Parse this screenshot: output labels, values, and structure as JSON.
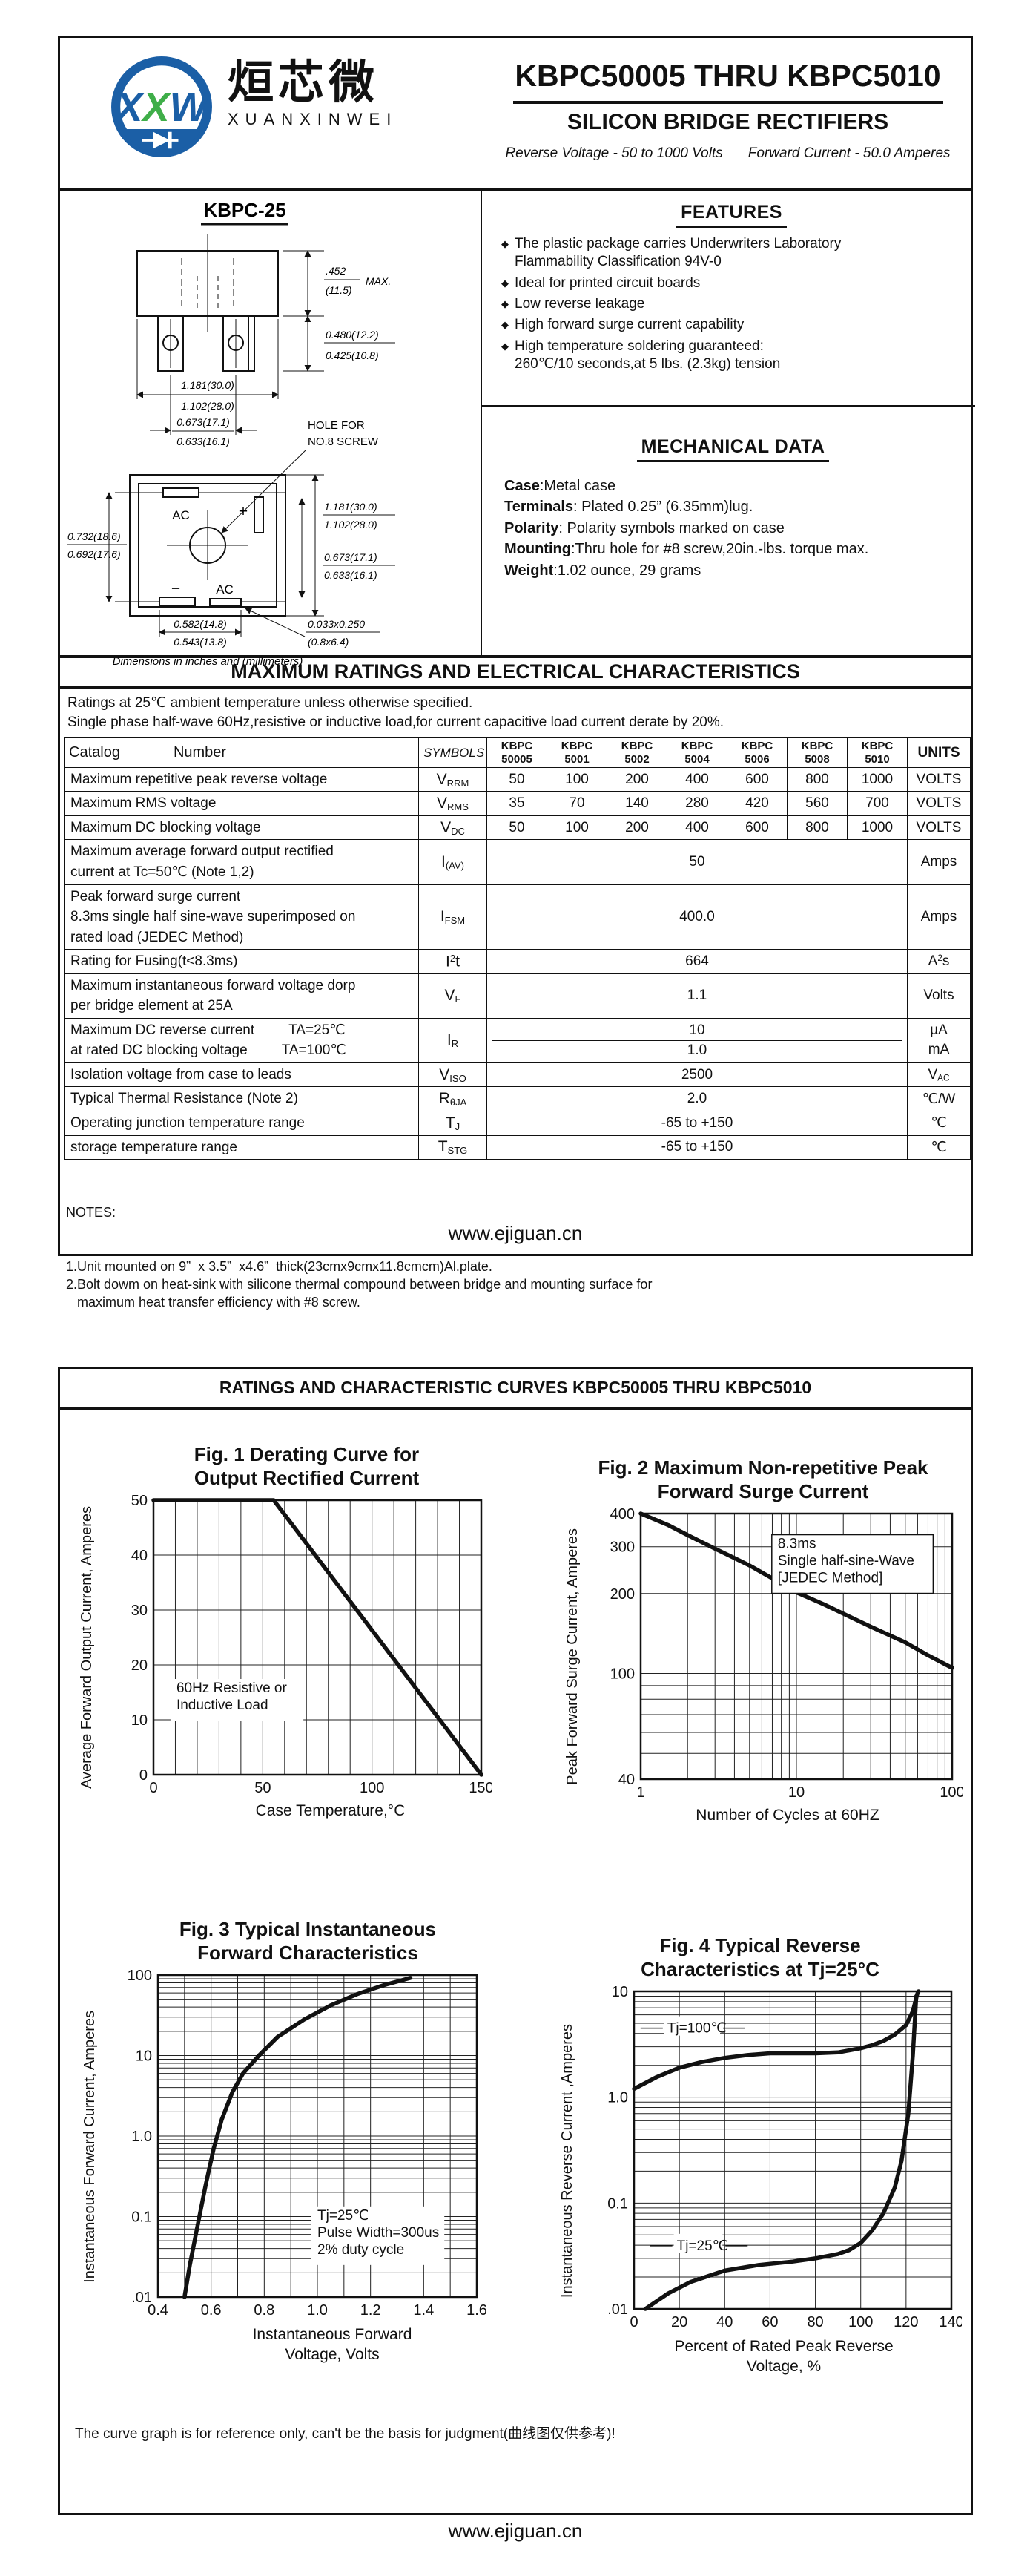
{
  "logo": {
    "monogram": [
      {
        "t": "X",
        "c": "#1b5fa6"
      },
      {
        "t": "X",
        "c": "#3fae49"
      },
      {
        "t": "W",
        "c": "#1b5fa6"
      }
    ],
    "chinese": "烜芯微",
    "latin": "XUANXINWEI",
    "blue": "#1b5fa6",
    "green": "#3fae49"
  },
  "header": {
    "title": "KBPC50005 THRU KBPC5010",
    "subtitle": "SILICON BRIDGE RECTIFIERS",
    "tagline_left": "Reverse Voltage - 50 to 1000 Volts",
    "tagline_right": "Forward Current - 50.0 Amperes"
  },
  "package": {
    "name": "KBPC-25",
    "caption": "Dimensions in inches and (millimeters)",
    "labels": {
      "height_top": ".452",
      "height_top_mm": "(11.5)",
      "height_max": "MAX.",
      "lug_h1": "0.480(12.2)",
      "lug_h2": "0.425(10.8)",
      "width1": "1.181(30.0)",
      "width2": "1.102(28.0)",
      "span1": "0.673(17.1)",
      "span2": "0.633(16.1)",
      "hole1": "HOLE FOR",
      "hole2": "NO.8 SCREW",
      "side1": "0.732(18.6)",
      "side2": "0.692(17.6)",
      "tall1": "1.181(30.0)",
      "tall2": "1.102(28.0)",
      "short1": "0.673(17.1)",
      "short2": "0.633(16.1)",
      "bottom1": "0.582(14.8)",
      "bottom2": "0.543(13.8)",
      "slot1": "0.033x0.250",
      "slot2": "(0.8x6.4)",
      "ac_top": "AC",
      "ac_bottom": "AC",
      "plus": "+",
      "minus": "−"
    }
  },
  "features": {
    "heading": "FEATURES",
    "bullet_glyph": "◆",
    "items": [
      {
        "lines": [
          "The plastic package carries Underwriters Laboratory",
          "Flammability Classification 94V-0"
        ]
      },
      {
        "lines": [
          "Ideal for printed circuit boards"
        ]
      },
      {
        "lines": [
          "Low reverse leakage"
        ]
      },
      {
        "lines": [
          "High forward surge current capability"
        ]
      },
      {
        "lines": [
          "High temperature soldering guaranteed:",
          "260℃/10 seconds,at 5 lbs. (2.3kg) tension"
        ]
      }
    ]
  },
  "mechanical": {
    "heading": "MECHANICAL DATA",
    "items": [
      {
        "b": "Case",
        "t": ":Metal case"
      },
      {
        "b": "Terminals",
        "t": ": Plated 0.25”  (6.35mm)lug."
      },
      {
        "b": "Polarity",
        "t": ": Polarity symbols marked on case"
      },
      {
        "b": "Mounting",
        "t": ":Thru hole for #8 screw,20in.-lbs. torque max."
      },
      {
        "b": "Weight",
        "t": ":1.02 ounce, 29 grams"
      }
    ]
  },
  "ratings": {
    "heading": "MAXIMUM RATINGS AND ELECTRICAL CHARACTERISTICS",
    "note1": "Ratings at 25℃ ambient temperature unless otherwise specified.",
    "note2": "Single phase half-wave 60Hz,resistive or inductive load,for current capacitive load current derate by 20%.",
    "table": {
      "catalog": "Catalog",
      "number": "Number",
      "symbols_header": "SYMBOLS",
      "units_header": "UNITS",
      "part_cols": [
        [
          "KBPC",
          "50005"
        ],
        [
          "KBPC",
          "5001"
        ],
        [
          "KBPC",
          "5002"
        ],
        [
          "KBPC",
          "5004"
        ],
        [
          "KBPC",
          "5006"
        ],
        [
          "KBPC",
          "5008"
        ],
        [
          "KBPC",
          "5010"
        ]
      ],
      "rows": [
        {
          "label": [
            [
              "Maximum repetitive peak reverse voltage"
            ]
          ],
          "sym": [
            {
              "t": "V"
            },
            {
              "t": "RRM",
              "s": "sub"
            }
          ],
          "values": [
            "50",
            "100",
            "200",
            "400",
            "600",
            "800",
            "1000"
          ],
          "unit": [
            {
              "t": "VOLTS"
            }
          ]
        },
        {
          "label": [
            [
              "Maximum RMS voltage"
            ]
          ],
          "sym": [
            {
              "t": "V"
            },
            {
              "t": "RMS",
              "s": "sub"
            }
          ],
          "values": [
            "35",
            "70",
            "140",
            "280",
            "420",
            "560",
            "700"
          ],
          "unit": [
            {
              "t": "VOLTS"
            }
          ]
        },
        {
          "label": [
            [
              "Maximum DC blocking voltage"
            ]
          ],
          "sym": [
            {
              "t": "V"
            },
            {
              "t": "DC",
              "s": "sub"
            }
          ],
          "values": [
            "50",
            "100",
            "200",
            "400",
            "600",
            "800",
            "1000"
          ],
          "unit": [
            {
              "t": "VOLTS"
            }
          ]
        },
        {
          "label": [
            [
              "Maximum average forward output rectified"
            ],
            [
              "current at  Tc=50℃  (Note 1,2)"
            ]
          ],
          "sym": [
            {
              "t": "I"
            },
            {
              "t": "(AV)",
              "s": "sub"
            }
          ],
          "span": "50",
          "unit": [
            {
              "t": "Amps"
            }
          ]
        },
        {
          "label": [
            [
              "Peak forward surge current"
            ],
            [
              "8.3ms single half sine-wave superimposed on"
            ],
            [
              "rated load (JEDEC Method)"
            ]
          ],
          "sym": [
            {
              "t": "I"
            },
            {
              "t": "FSM",
              "s": "sub"
            }
          ],
          "span": "400.0",
          "unit": [
            {
              "t": "Amps"
            }
          ]
        },
        {
          "label": [
            [
              "Rating for Fusing(t<8.3ms)"
            ]
          ],
          "sym": [
            {
              "t": "I"
            },
            {
              "t": "2",
              "s": "sup"
            },
            {
              "t": "t"
            }
          ],
          "span": "664",
          "unit": [
            {
              "t": "A"
            },
            {
              "t": "2",
              "s": "sup"
            },
            {
              "t": "s"
            }
          ]
        },
        {
          "label": [
            [
              "Maximum instantaneous forward voltage dorp"
            ],
            [
              "per bridge element at 25A"
            ]
          ],
          "sym": [
            {
              "t": "V"
            },
            {
              "t": "F",
              "s": "sub"
            }
          ],
          "span": "1.1",
          "unit": [
            {
              "t": "Volts"
            }
          ]
        },
        {
          "label": [
            [
              "Maximum DC reverse current",
              "TA=25℃"
            ],
            [
              "at rated DC blocking voltage",
              "TA=100℃"
            ]
          ],
          "sym": [
            {
              "t": "I"
            },
            {
              "t": "R",
              "s": "sub"
            }
          ],
          "dual_values": [
            "10",
            "1.0"
          ],
          "dual_units": [
            [
              {
                "t": "µA"
              }
            ],
            [
              {
                "t": "mA"
              }
            ]
          ]
        },
        {
          "label": [
            [
              "Isolation voltage from case to leads"
            ]
          ],
          "sym": [
            {
              "t": "V"
            },
            {
              "t": "ISO",
              "s": "sub"
            }
          ],
          "span": "2500",
          "unit": [
            {
              "t": "V"
            },
            {
              "t": "AC",
              "s": "sub"
            }
          ]
        },
        {
          "label": [
            [
              "Typical Thermal Resistance (Note 2)"
            ]
          ],
          "sym": [
            {
              "t": "R"
            },
            {
              "t": "θJA",
              "s": "sub"
            }
          ],
          "span": "2.0",
          "unit": [
            {
              "t": "℃/W"
            }
          ]
        },
        {
          "label": [
            [
              "Operating junction temperature range"
            ]
          ],
          "sym": [
            {
              "t": "T"
            },
            {
              "t": "J",
              "s": "sub"
            }
          ],
          "span": "-65 to +150",
          "unit": [
            {
              "t": "℃"
            }
          ]
        },
        {
          "label": [
            [
              "storage temperature range"
            ]
          ],
          "sym": [
            {
              "t": "T"
            },
            {
              "t": "STG",
              "s": "sub"
            }
          ],
          "span": "-65 to +150",
          "unit": [
            {
              "t": "℃"
            }
          ]
        }
      ]
    },
    "notes_title": "NOTES:",
    "notes": [
      "1.Unit mounted on 9”  x 3.5”  x4.6”  thick(23cmx9cmx11.8cmcm)Al.plate.",
      "2.Bolt dowm on heat-sink with silicone thermal compound between bridge and mounting surface for",
      "   maximum heat transfer efficiency with #8 screw."
    ]
  },
  "page1_url": "www.ejiguan.cn",
  "page2": {
    "banner": "RATINGS AND CHARACTERISTIC CURVES KBPC50005 THRU KBPC5010",
    "disclaimer": "The curve graph is for reference only, can't be the basis for judgment(曲线图仅供参考)!",
    "url": "www.ejiguan.cn"
  },
  "chart_data": [
    {
      "id": "fig1",
      "type": "line",
      "title": [
        "Fig. 1 Derating Curve for",
        "Output Rectified Current"
      ],
      "xlabel": [
        "Case Temperature,°C"
      ],
      "ylabel": [
        "Average Forward Output",
        "Current, Amperes"
      ],
      "x_scale": "linear",
      "xlim": [
        0,
        150
      ],
      "x_grid_step": 10,
      "xticks": [
        {
          "v": 0,
          "l": "0"
        },
        {
          "v": 50,
          "l": "50"
        },
        {
          "v": 100,
          "l": "100"
        },
        {
          "v": 150,
          "l": "150"
        }
      ],
      "y_scale": "linear",
      "ylim": [
        0,
        50
      ],
      "y_grid_step": 10,
      "yticks": [
        {
          "v": 0,
          "l": "0"
        },
        {
          "v": 10,
          "l": "10"
        },
        {
          "v": 20,
          "l": "20"
        },
        {
          "v": 30,
          "l": "30"
        },
        {
          "v": 40,
          "l": "40"
        },
        {
          "v": 50,
          "l": "50"
        }
      ],
      "annotation": {
        "lines": [
          "60Hz Resistive or",
          "Inductive Load"
        ],
        "fx": 0.07,
        "fy": 0.7,
        "box": false
      },
      "series": [
        {
          "name": "derating-curve",
          "x": [
            0,
            55,
            150
          ],
          "y": [
            50,
            50,
            0
          ]
        }
      ]
    },
    {
      "id": "fig2",
      "type": "line",
      "title": [
        "Fig. 2 Maximum Non-repetitive Peak",
        "Forward Surge Current"
      ],
      "xlabel": [
        "Number of Cycles at 60HZ"
      ],
      "ylabel": [
        "Peak Forward Surge Current,",
        "Amperes"
      ],
      "x_scale": "log",
      "xlim": [
        1,
        100
      ],
      "xticks": [
        {
          "v": 1,
          "l": "1"
        },
        {
          "v": 10,
          "l": "10"
        },
        {
          "v": 100,
          "l": "100"
        }
      ],
      "y_scale": "log",
      "ylim": [
        40,
        400
      ],
      "yticks": [
        {
          "v": 40,
          "l": "40"
        },
        {
          "v": 100,
          "l": "100"
        },
        {
          "v": 200,
          "l": "200"
        },
        {
          "v": 300,
          "l": "300"
        },
        {
          "v": 400,
          "l": "400"
        }
      ],
      "annotation": {
        "lines": [
          "8.3ms",
          "Single half-sine-Wave",
          "[JEDEC Method]"
        ],
        "fx": 0.44,
        "fy": 0.13,
        "box": true
      },
      "series": [
        {
          "name": "surge-curve",
          "x": [
            1,
            1.5,
            2,
            3,
            4,
            5,
            7,
            10,
            15,
            20,
            30,
            50,
            70,
            100
          ],
          "y": [
            400,
            362,
            332,
            295,
            272,
            255,
            228,
            202,
            182,
            168,
            150,
            131,
            117,
            105
          ]
        }
      ]
    },
    {
      "id": "fig3",
      "type": "line",
      "title": [
        "Fig. 3 Typical Instantaneous",
        "Forward Characteristics"
      ],
      "xlabel": [
        "Instantaneous Forward",
        "Voltage, Volts"
      ],
      "ylabel": [
        "Instantaneous Forward Current,",
        "Amperes"
      ],
      "x_scale": "linear",
      "xlim": [
        0.4,
        1.6
      ],
      "x_grid_step": 0.1,
      "xticks": [
        {
          "v": 0.4,
          "l": "0.4"
        },
        {
          "v": 0.6,
          "l": "0.6"
        },
        {
          "v": 0.8,
          "l": "0.8"
        },
        {
          "v": 1.0,
          "l": "1.0"
        },
        {
          "v": 1.2,
          "l": "1.2"
        },
        {
          "v": 1.4,
          "l": "1.4"
        },
        {
          "v": 1.6,
          "l": "1.6"
        }
      ],
      "y_scale": "log",
      "ylim": [
        0.01,
        100
      ],
      "yticks": [
        {
          "v": 0.01,
          "l": ".01"
        },
        {
          "v": 0.1,
          "l": "0.1"
        },
        {
          "v": 1,
          "l": "1.0"
        },
        {
          "v": 10,
          "l": "10"
        },
        {
          "v": 100,
          "l": "100"
        }
      ],
      "annotation": {
        "lines": [
          "Tj=25℃",
          "Pulse Width=300us",
          "2% duty cycle"
        ],
        "fx": 0.5,
        "fy": 0.76,
        "box": false
      },
      "series": [
        {
          "name": "forward-curve",
          "x": [
            0.5,
            0.52,
            0.55,
            0.58,
            0.61,
            0.64,
            0.68,
            0.72,
            0.78,
            0.85,
            0.95,
            1.05,
            1.15,
            1.25,
            1.35
          ],
          "y": [
            0.01,
            0.025,
            0.08,
            0.25,
            0.7,
            1.6,
            3.5,
            6,
            10,
            17,
            28,
            42,
            58,
            75,
            92
          ]
        }
      ]
    },
    {
      "id": "fig4",
      "type": "line",
      "title": [
        "Fig. 4 Typical Reverse",
        "Characteristics at Tj=25°C"
      ],
      "xlabel": [
        "Percent of Rated Peak Reverse",
        "Voltage, %"
      ],
      "ylabel": [
        "Instantaneous Reverse",
        "Current ,Amperes"
      ],
      "x_scale": "linear",
      "xlim": [
        0,
        140
      ],
      "x_grid_step": 20,
      "xticks": [
        {
          "v": 0,
          "l": "0"
        },
        {
          "v": 20,
          "l": "20"
        },
        {
          "v": 40,
          "l": "40"
        },
        {
          "v": 60,
          "l": "60"
        },
        {
          "v": 80,
          "l": "80"
        },
        {
          "v": 100,
          "l": "100"
        },
        {
          "v": 120,
          "l": "120"
        },
        {
          "v": 140,
          "l": "140"
        }
      ],
      "y_scale": "log",
      "ylim": [
        0.01,
        10
      ],
      "yticks": [
        {
          "v": 0.01,
          "l": ".01"
        },
        {
          "v": 0.1,
          "l": "0.1"
        },
        {
          "v": 1,
          "l": "1.0"
        },
        {
          "v": 10,
          "l": "10"
        }
      ],
      "series": [
        {
          "name": "tj100-curve",
          "label": "Tj=100℃",
          "x": [
            0,
            10,
            20,
            30,
            40,
            50,
            60,
            70,
            80,
            90,
            100,
            105,
            110,
            115,
            120,
            123,
            125,
            125.5
          ],
          "y": [
            1.2,
            1.55,
            1.9,
            2.15,
            2.35,
            2.5,
            2.6,
            2.6,
            2.6,
            2.65,
            2.9,
            3.1,
            3.4,
            3.9,
            4.8,
            6.5,
            9.5,
            10
          ]
        },
        {
          "name": "tj25-curve",
          "label": "Tj=25℃",
          "x": [
            5,
            15,
            25,
            40,
            55,
            70,
            80,
            90,
            95,
            100,
            105,
            110,
            115,
            118,
            121,
            123,
            124.5
          ],
          "y": [
            0.01,
            0.014,
            0.018,
            0.023,
            0.026,
            0.028,
            0.03,
            0.033,
            0.036,
            0.042,
            0.055,
            0.08,
            0.14,
            0.25,
            0.7,
            2.5,
            9
          ]
        }
      ],
      "series_labels": [
        {
          "text": "Tj=100℃",
          "fx": 0.1,
          "fy": 0.13
        },
        {
          "text": "Tj=25℃",
          "fx": 0.13,
          "fy": 0.815
        }
      ]
    }
  ]
}
